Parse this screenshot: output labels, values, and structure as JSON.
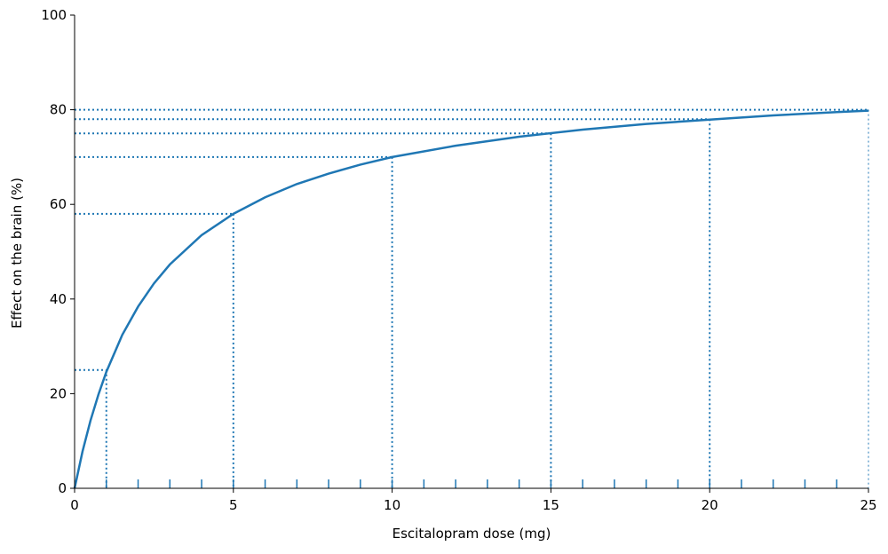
{
  "chart_data": {
    "type": "line",
    "xlabel": "Escitalopram dose (mg)",
    "ylabel": "Effect on the brain (%)",
    "x": [
      0,
      0.25,
      0.5,
      0.75,
      1,
      1.5,
      2,
      2.5,
      3,
      4,
      5,
      6,
      7,
      8,
      9,
      10,
      12,
      14,
      16,
      18,
      20,
      22,
      24,
      25
    ],
    "values": [
      0,
      7.8,
      14.3,
      19.8,
      24.6,
      32.4,
      38.4,
      43.3,
      47.3,
      53.5,
      58.0,
      61.5,
      64.3,
      66.5,
      68.4,
      70.0,
      72.4,
      74.3,
      75.8,
      77.0,
      77.9,
      78.8,
      79.5,
      79.8
    ],
    "color": "#1f77b4",
    "reference_points": {
      "x": [
        1,
        5,
        10,
        15,
        20,
        25
      ],
      "y": [
        25,
        58,
        70,
        75,
        78,
        80
      ]
    },
    "rug": [
      1,
      2,
      3,
      4,
      5,
      6,
      7,
      8,
      9,
      10,
      11,
      12,
      13,
      14,
      15,
      16,
      17,
      18,
      19,
      20,
      21,
      22,
      23,
      24
    ],
    "xlim": [
      0,
      25
    ],
    "xticks": [
      0,
      5,
      10,
      15,
      20,
      25
    ],
    "ylim": [
      0,
      100
    ],
    "yticks": [
      0,
      20,
      40,
      60,
      80,
      100
    ]
  }
}
